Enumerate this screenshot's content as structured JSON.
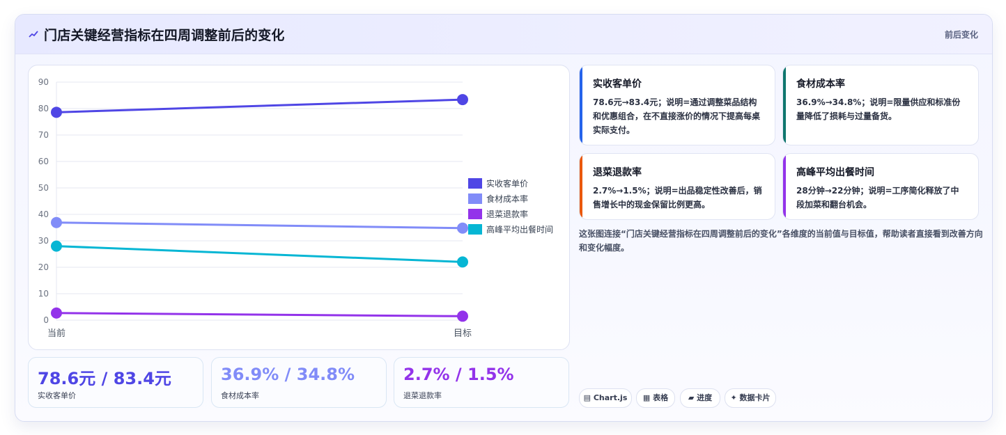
{
  "header": {
    "icon": "chart-line-icon",
    "title": "门店关键经营指标在四周调整前后的变化",
    "tag": "前后变化"
  },
  "chart_data": {
    "type": "line",
    "x": [
      "当前",
      "目标"
    ],
    "ylim": [
      0,
      90
    ],
    "yticks": [
      0,
      10,
      20,
      30,
      40,
      50,
      60,
      70,
      80,
      90
    ],
    "grid": true,
    "legend": "right",
    "series": [
      {
        "name": "实收客单价",
        "values": [
          78.6,
          83.4
        ],
        "color": "#4f46e5"
      },
      {
        "name": "食材成本率",
        "values": [
          36.9,
          34.8
        ],
        "color": "#818cf8"
      },
      {
        "name": "退菜退款率",
        "values": [
          2.7,
          1.5
        ],
        "color": "#9333ea"
      },
      {
        "name": "高峰平均出餐时间",
        "values": [
          28,
          22
        ],
        "color": "#06b6d4"
      }
    ]
  },
  "kpis": [
    {
      "value": "78.6元 / 83.4元",
      "label": "实收客单价",
      "color": "#4f46e5"
    },
    {
      "value": "36.9% / 34.8%",
      "label": "食材成本率",
      "color": "#818cf8"
    },
    {
      "value": "2.7% / 1.5%",
      "label": "退菜退款率",
      "color": "#9333ea"
    }
  ],
  "cards": [
    {
      "title": "实收客单价",
      "text": "78.6元→83.4元；说明=通过调整菜品结构和优惠组合，在不直接涨价的情况下提高每桌实际支付。",
      "color": "#2563eb"
    },
    {
      "title": "食材成本率",
      "text": "36.9%→34.8%；说明=限量供应和标准份量降低了损耗与过量备货。",
      "color": "#0f766e"
    },
    {
      "title": "退菜退款率",
      "text": "2.7%→1.5%；说明=出品稳定性改善后，销售增长中的现金保留比例更高。",
      "color": "#ea580c"
    },
    {
      "title": "高峰平均出餐时间",
      "text": "28分钟→22分钟；说明=工序简化释放了中段加菜和翻台机会。",
      "color": "#9333ea"
    }
  ],
  "note": "这张图连接“门店关键经营指标在四周调整前后的变化”各维度的当前值与目标值，帮助读者直接看到改善方向和变化幅度。",
  "chips": [
    {
      "label": "Chart.js",
      "icon": "chart-icon"
    },
    {
      "label": "表格",
      "icon": "table-icon"
    },
    {
      "label": "进度",
      "icon": "progress-icon"
    },
    {
      "label": "数据卡片",
      "icon": "sparkle-icon"
    }
  ]
}
